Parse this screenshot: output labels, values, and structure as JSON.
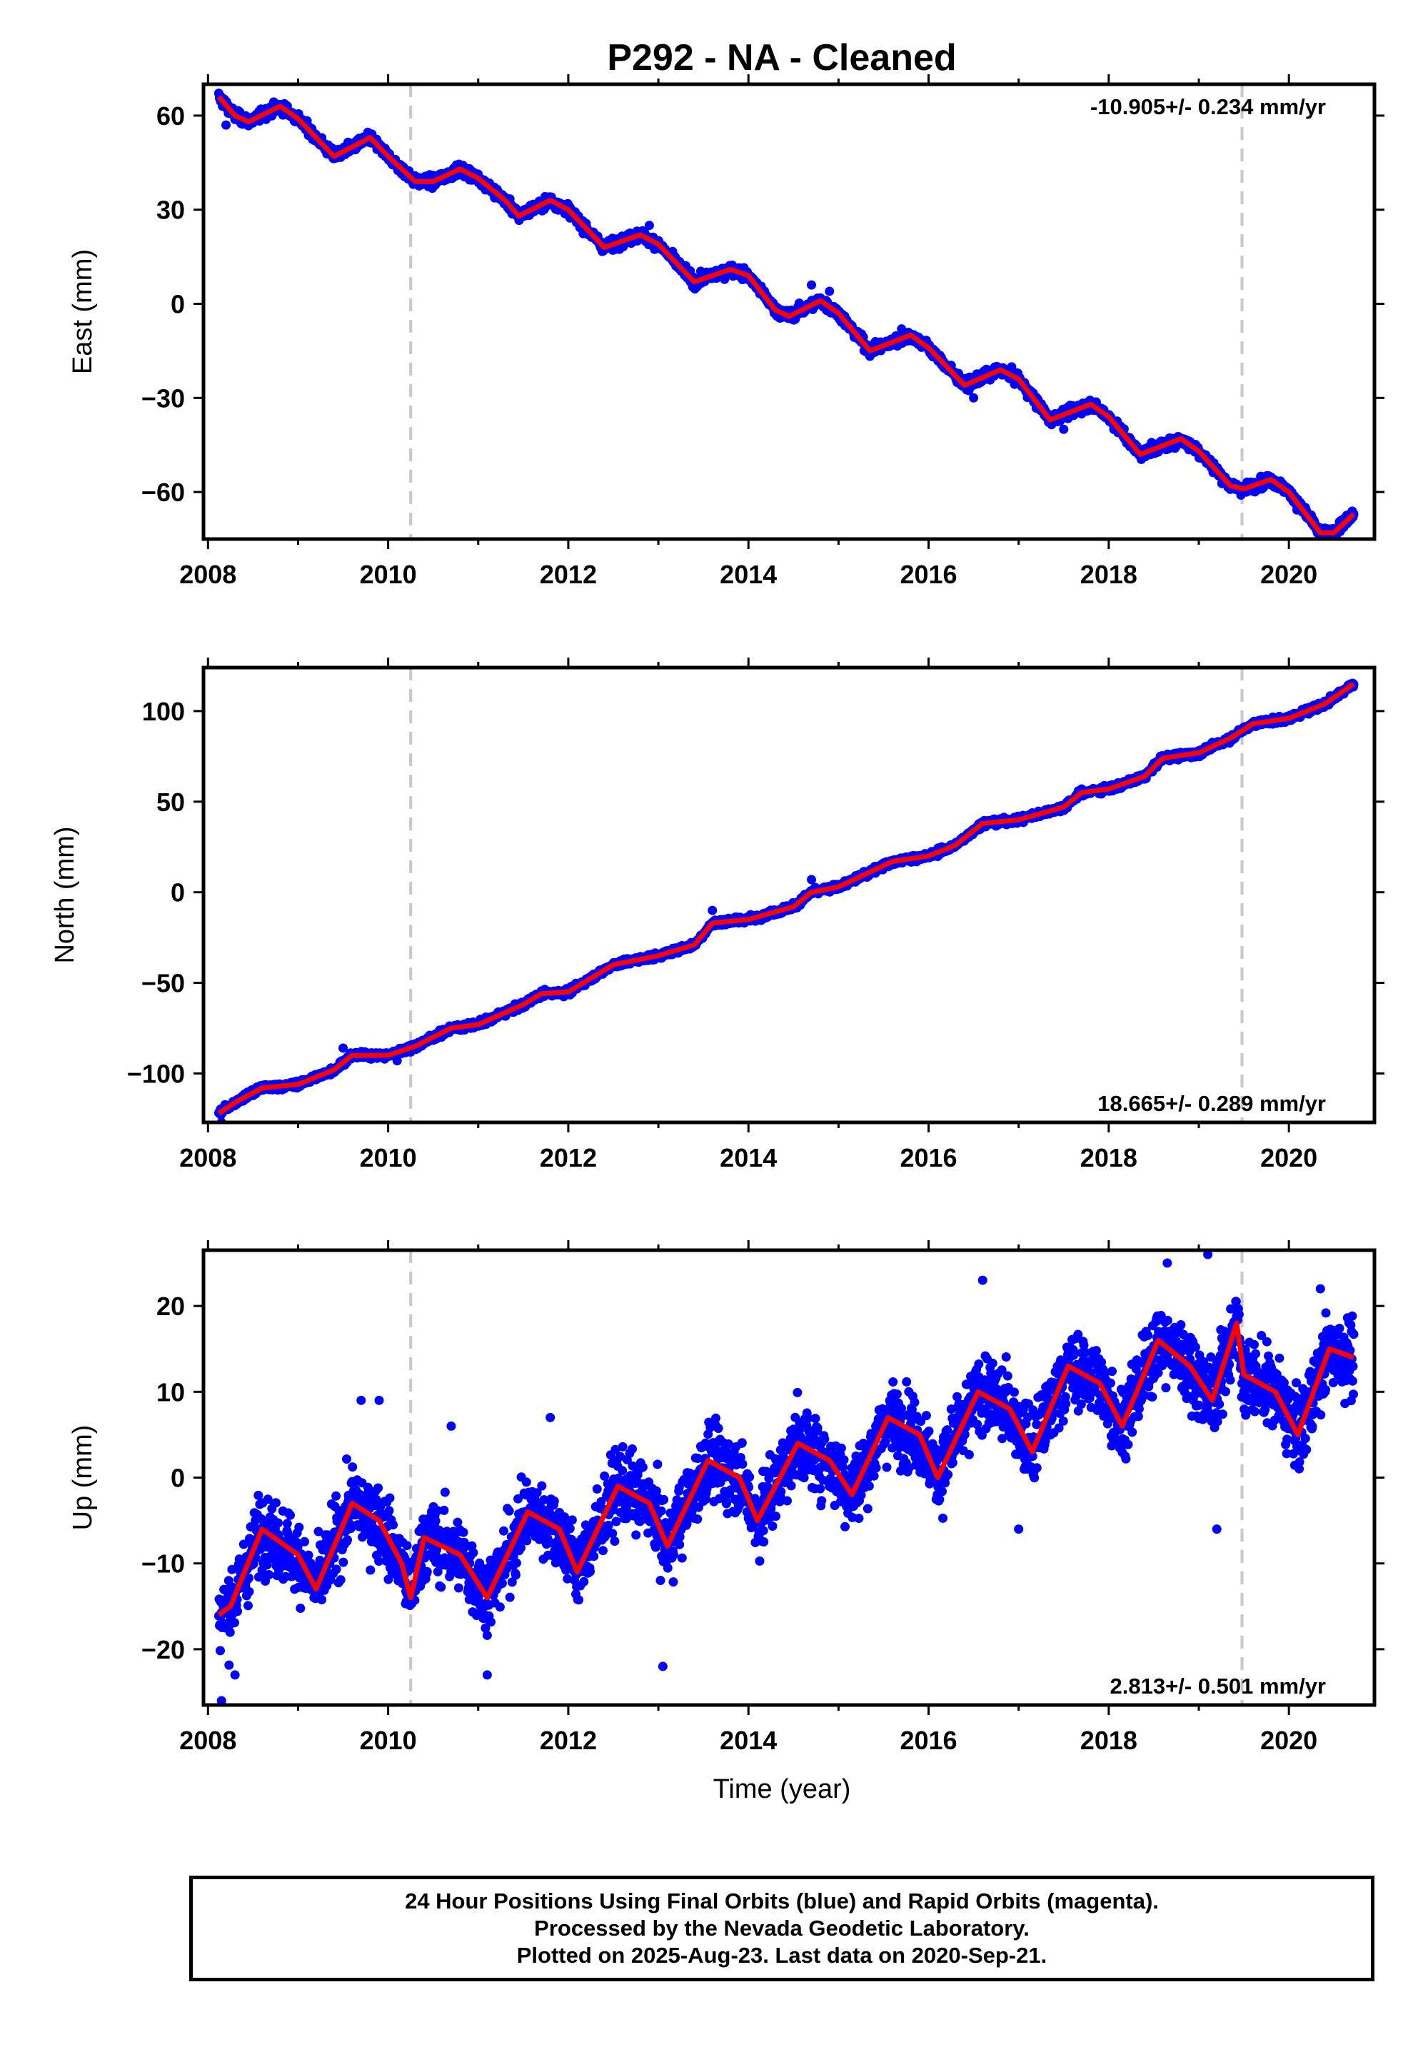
{
  "title": "P292  - NA - Cleaned",
  "xlabel": "Time (year)",
  "footer": {
    "line1": "24 Hour Positions Using Final Orbits (blue) and Rapid Orbits (magenta).",
    "line2": "Processed by the Nevada Geodetic Laboratory.",
    "line3": "Plotted on 2025-Aug-23. Last data on 2020-Sep-21."
  },
  "colors": {
    "points": "#0000ff",
    "model": "#ff0000",
    "event_line": "#c8c8c8",
    "frame": "#000000"
  },
  "chart_data": [
    {
      "type": "scatter",
      "panel": "east",
      "ylabel": "East (mm)",
      "rate_label": "-10.905+/- 0.234 mm/yr",
      "rate_position": "top-right",
      "xlim": [
        2007.95,
        2020.95
      ],
      "ylim": [
        -75,
        70
      ],
      "xticks": [
        2008,
        2010,
        2012,
        2014,
        2016,
        2018,
        2020
      ],
      "yticks": [
        -60,
        -30,
        0,
        30,
        60
      ],
      "ytick_labels": [
        "−60",
        "−30",
        "0",
        "30",
        "60"
      ],
      "event_lines": [
        2010.25,
        2019.48
      ],
      "start": 2008.12,
      "end": 2020.72,
      "rate": -10.905,
      "model": [
        [
          2008.12,
          66
        ],
        [
          2008.3,
          60
        ],
        [
          2008.45,
          58
        ],
        [
          2008.8,
          63
        ],
        [
          2009.0,
          59
        ],
        [
          2009.3,
          50
        ],
        [
          2009.4,
          47
        ],
        [
          2009.6,
          50
        ],
        [
          2009.8,
          53
        ],
        [
          2010.0,
          47
        ],
        [
          2010.3,
          39
        ],
        [
          2010.5,
          39
        ],
        [
          2010.8,
          43
        ],
        [
          2011.0,
          40
        ],
        [
          2011.3,
          33
        ],
        [
          2011.45,
          28
        ],
        [
          2011.8,
          33
        ],
        [
          2012.0,
          30
        ],
        [
          2012.4,
          18
        ],
        [
          2012.8,
          22
        ],
        [
          2013.0,
          19
        ],
        [
          2013.4,
          7
        ],
        [
          2013.8,
          11
        ],
        [
          2014.0,
          9
        ],
        [
          2014.3,
          -2
        ],
        [
          2014.45,
          -4
        ],
        [
          2014.8,
          1
        ],
        [
          2015.0,
          -3
        ],
        [
          2015.35,
          -15
        ],
        [
          2015.8,
          -10
        ],
        [
          2016.0,
          -14
        ],
        [
          2016.4,
          -26
        ],
        [
          2016.8,
          -21
        ],
        [
          2017.0,
          -24
        ],
        [
          2017.35,
          -37
        ],
        [
          2017.8,
          -32
        ],
        [
          2018.0,
          -36
        ],
        [
          2018.35,
          -48
        ],
        [
          2018.8,
          -43
        ],
        [
          2019.0,
          -47
        ],
        [
          2019.35,
          -58
        ],
        [
          2019.5,
          -59
        ],
        [
          2019.8,
          -56
        ],
        [
          2020.0,
          -60
        ],
        [
          2020.35,
          -73
        ],
        [
          2020.5,
          -73
        ],
        [
          2020.72,
          -67
        ]
      ],
      "scatter": 1.6,
      "outliers": [
        [
          2014.7,
          6
        ],
        [
          2014.9,
          4
        ],
        [
          2008.2,
          57
        ],
        [
          2012.9,
          25
        ],
        [
          2015.7,
          -8
        ],
        [
          2016.5,
          -30
        ],
        [
          2017.5,
          -40
        ]
      ]
    },
    {
      "type": "scatter",
      "panel": "north",
      "ylabel": "North (mm)",
      "rate_label": "18.665+/- 0.289 mm/yr",
      "rate_position": "bottom-right",
      "xlim": [
        2007.95,
        2020.95
      ],
      "ylim": [
        -127,
        124
      ],
      "xticks": [
        2008,
        2010,
        2012,
        2014,
        2016,
        2018,
        2020
      ],
      "yticks": [
        -100,
        -50,
        0,
        50,
        100
      ],
      "ytick_labels": [
        "−100",
        "−50",
        "0",
        "50",
        "100"
      ],
      "event_lines": [
        2010.25,
        2019.48
      ],
      "start": 2008.12,
      "end": 2020.72,
      "rate": 18.665,
      "model": [
        [
          2008.12,
          -122
        ],
        [
          2008.3,
          -116
        ],
        [
          2008.6,
          -108
        ],
        [
          2009.0,
          -106
        ],
        [
          2009.4,
          -98
        ],
        [
          2009.6,
          -90
        ],
        [
          2010.0,
          -90
        ],
        [
          2010.3,
          -85
        ],
        [
          2010.7,
          -75
        ],
        [
          2011.0,
          -73
        ],
        [
          2011.5,
          -62
        ],
        [
          2011.7,
          -56
        ],
        [
          2012.0,
          -55
        ],
        [
          2012.5,
          -40
        ],
        [
          2013.0,
          -35
        ],
        [
          2013.4,
          -29
        ],
        [
          2013.6,
          -17
        ],
        [
          2014.0,
          -15
        ],
        [
          2014.5,
          -8
        ],
        [
          2014.7,
          0
        ],
        [
          2015.0,
          3
        ],
        [
          2015.6,
          17
        ],
        [
          2016.0,
          20
        ],
        [
          2016.3,
          26
        ],
        [
          2016.6,
          38
        ],
        [
          2017.0,
          40
        ],
        [
          2017.5,
          47
        ],
        [
          2017.7,
          55
        ],
        [
          2018.0,
          57
        ],
        [
          2018.4,
          64
        ],
        [
          2018.6,
          74
        ],
        [
          2019.0,
          77
        ],
        [
          2019.35,
          85
        ],
        [
          2019.6,
          93
        ],
        [
          2020.0,
          96
        ],
        [
          2020.4,
          104
        ],
        [
          2020.72,
          115
        ]
      ],
      "scatter": 1.7,
      "outliers": [
        [
          2008.15,
          -127
        ],
        [
          2009.5,
          -86
        ],
        [
          2010.1,
          -93
        ],
        [
          2013.6,
          -10
        ],
        [
          2014.7,
          7
        ]
      ]
    },
    {
      "type": "scatter",
      "panel": "up",
      "ylabel": "Up (mm)",
      "rate_label": "2.813+/- 0.501 mm/yr",
      "rate_position": "bottom-right",
      "xlim": [
        2007.95,
        2020.95
      ],
      "ylim": [
        -26.5,
        26.5
      ],
      "xticks": [
        2008,
        2010,
        2012,
        2014,
        2016,
        2018,
        2020
      ],
      "yticks": [
        -20,
        -10,
        0,
        10,
        20
      ],
      "ytick_labels": [
        "−20",
        "−10",
        "0",
        "10",
        "20"
      ],
      "event_lines": [
        2010.25,
        2019.48
      ],
      "start": 2008.12,
      "end": 2020.72,
      "rate": 2.813,
      "model": [
        [
          2008.12,
          -16
        ],
        [
          2008.25,
          -15
        ],
        [
          2008.6,
          -6
        ],
        [
          2009.0,
          -9
        ],
        [
          2009.2,
          -13
        ],
        [
          2009.6,
          -3
        ],
        [
          2009.9,
          -5
        ],
        [
          2010.15,
          -10
        ],
        [
          2010.25,
          -14
        ],
        [
          2010.4,
          -7
        ],
        [
          2010.8,
          -9
        ],
        [
          2011.1,
          -14
        ],
        [
          2011.55,
          -4
        ],
        [
          2011.9,
          -6
        ],
        [
          2012.1,
          -11
        ],
        [
          2012.55,
          -1
        ],
        [
          2012.9,
          -3
        ],
        [
          2013.1,
          -8
        ],
        [
          2013.55,
          2
        ],
        [
          2013.9,
          0
        ],
        [
          2014.1,
          -5
        ],
        [
          2014.55,
          4
        ],
        [
          2014.9,
          2
        ],
        [
          2015.15,
          -2
        ],
        [
          2015.55,
          7
        ],
        [
          2015.9,
          5
        ],
        [
          2016.1,
          0
        ],
        [
          2016.55,
          10
        ],
        [
          2016.9,
          8
        ],
        [
          2017.15,
          3
        ],
        [
          2017.55,
          13
        ],
        [
          2017.9,
          11
        ],
        [
          2018.15,
          6
        ],
        [
          2018.55,
          16
        ],
        [
          2018.9,
          13
        ],
        [
          2019.15,
          9
        ],
        [
          2019.42,
          18
        ],
        [
          2019.5,
          12
        ],
        [
          2019.85,
          10
        ],
        [
          2020.1,
          5
        ],
        [
          2020.45,
          15
        ],
        [
          2020.72,
          14
        ]
      ],
      "scatter": 4.0,
      "outliers": [
        [
          2008.15,
          -26
        ],
        [
          2008.3,
          -23
        ],
        [
          2009.7,
          9
        ],
        [
          2009.9,
          9
        ],
        [
          2010.7,
          6
        ],
        [
          2011.8,
          7
        ],
        [
          2013.05,
          -22
        ],
        [
          2011.1,
          -23
        ],
        [
          2016.6,
          23
        ],
        [
          2018.65,
          25
        ],
        [
          2019.1,
          26
        ],
        [
          2019.2,
          -6
        ],
        [
          2020.35,
          22
        ],
        [
          2017.0,
          -6
        ]
      ]
    }
  ]
}
